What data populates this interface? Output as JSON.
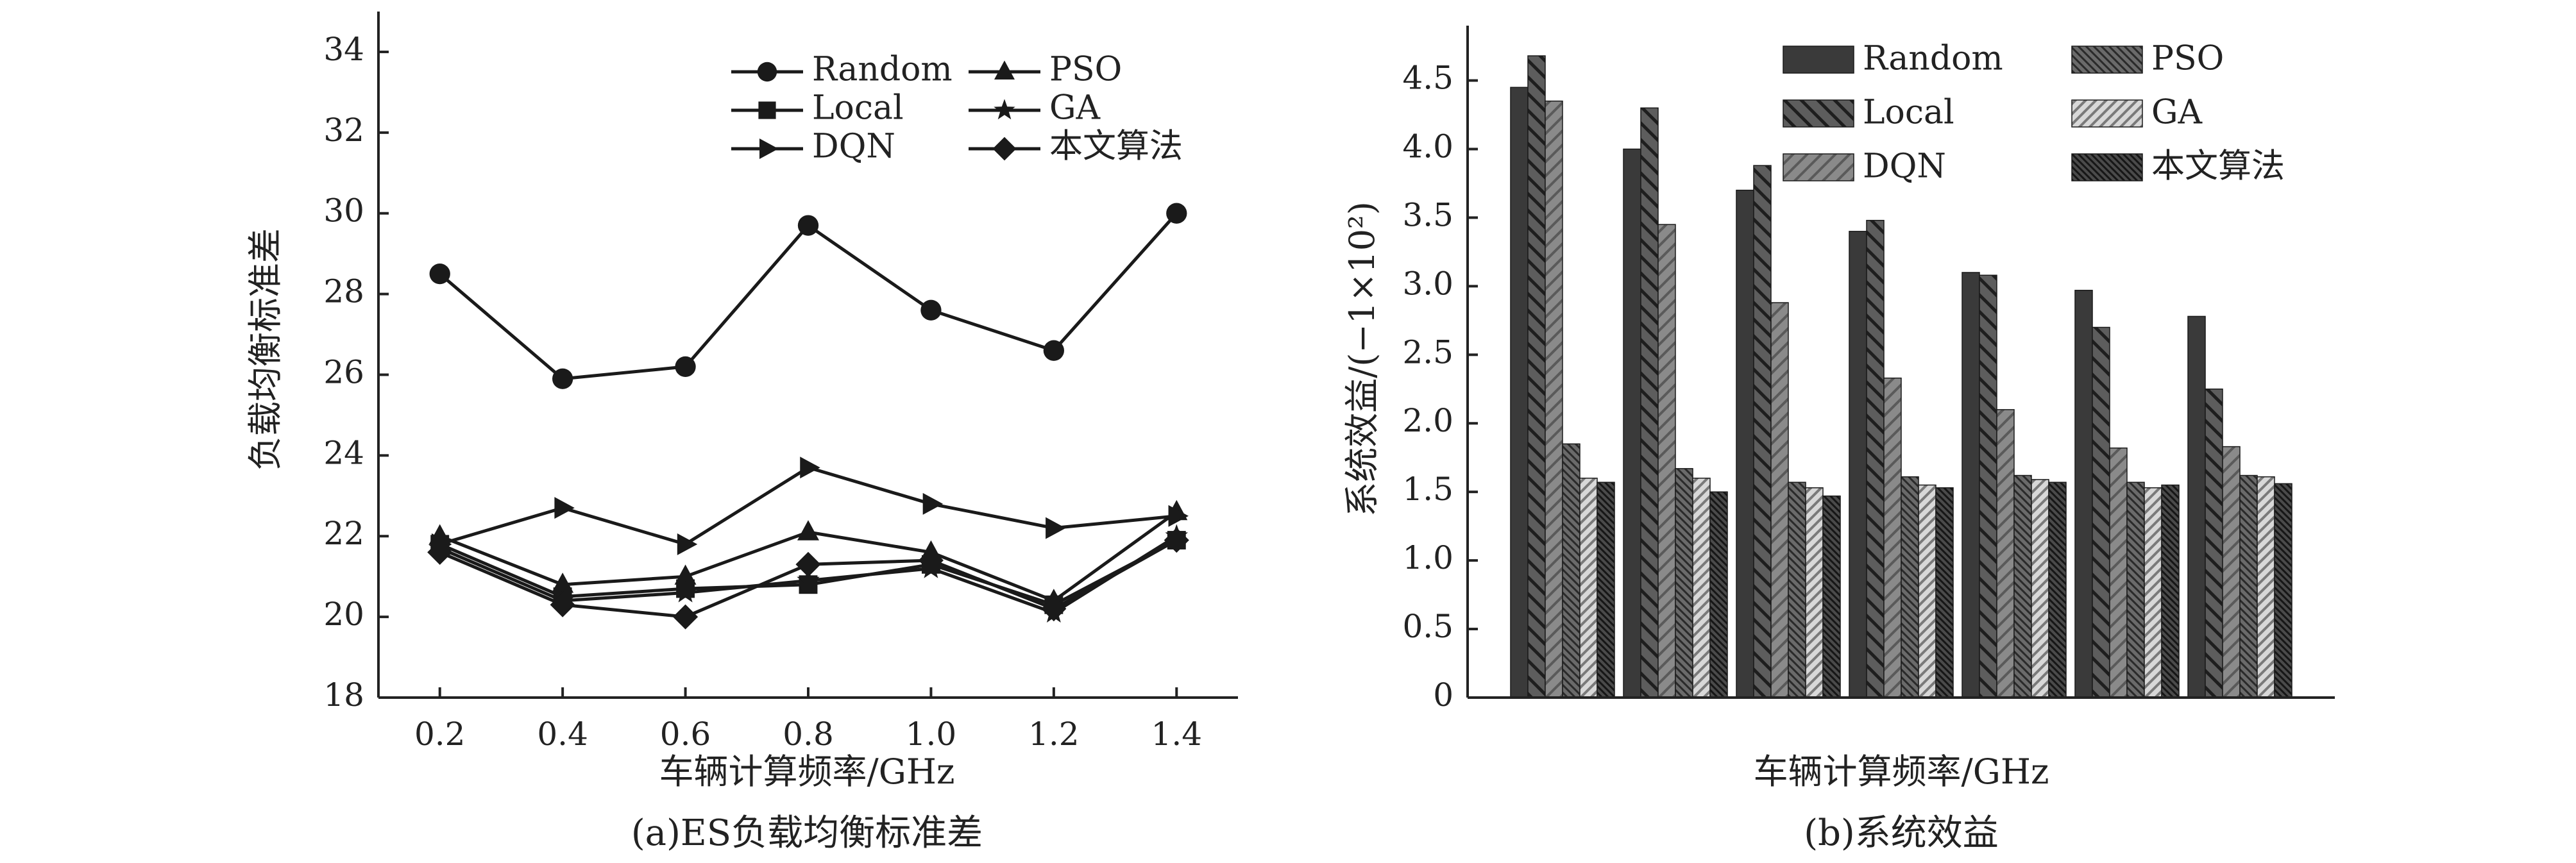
{
  "chart_data": [
    {
      "type": "line",
      "caption": "(a)ES负载均衡标准差",
      "xlabel": "车辆计算频率/GHz",
      "ylabel": "负载均衡标准差",
      "x": [
        0.2,
        0.4,
        0.6,
        0.8,
        1.0,
        1.2,
        1.4
      ],
      "x_ticks": [
        "0.2",
        "0.4",
        "0.6",
        "0.8",
        "1.0",
        "1.2",
        "1.4"
      ],
      "ylim": [
        18,
        35
      ],
      "y_ticks": [
        "18",
        "20",
        "22",
        "24",
        "26",
        "28",
        "30",
        "32",
        "34"
      ],
      "grid": false,
      "legend_position": "top-right",
      "series": [
        {
          "name": "Random",
          "marker": "circle",
          "values": [
            28.5,
            25.9,
            26.2,
            29.7,
            27.6,
            26.6,
            30.0
          ]
        },
        {
          "name": "PSO",
          "marker": "triangle",
          "values": [
            22.0,
            20.8,
            21.0,
            22.1,
            21.6,
            20.4,
            22.6
          ]
        },
        {
          "name": "Local",
          "marker": "square",
          "values": [
            21.8,
            20.5,
            20.7,
            20.8,
            21.3,
            20.3,
            21.9
          ]
        },
        {
          "name": "GA",
          "marker": "star",
          "values": [
            21.7,
            20.4,
            20.6,
            20.9,
            21.2,
            20.1,
            22.0
          ]
        },
        {
          "name": "DQN",
          "marker": "triangle-right",
          "values": [
            21.8,
            22.7,
            21.8,
            23.7,
            22.8,
            22.2,
            22.5
          ]
        },
        {
          "name": "本文算法",
          "marker": "diamond",
          "values": [
            21.6,
            20.3,
            20.0,
            21.3,
            21.4,
            20.2,
            21.9
          ]
        }
      ]
    },
    {
      "type": "bar",
      "caption": "(b)系统效益",
      "xlabel": "车辆计算频率/GHz",
      "ylabel": "系统效益/(−1×10²)",
      "categories": [
        "0.2",
        "0.4",
        "0.6",
        "0.8",
        "1.0",
        "1.2",
        "1.4"
      ],
      "ylim": [
        0,
        4.9
      ],
      "y_ticks": [
        "0",
        "0.5",
        "1.0",
        "1.5",
        "2.0",
        "2.5",
        "3.0",
        "3.5",
        "4.0",
        "4.5"
      ],
      "grid": false,
      "legend_position": "top",
      "series": [
        {
          "name": "Random",
          "pattern": "dark-solid",
          "values": [
            4.45,
            4.0,
            3.7,
            3.4,
            3.1,
            2.97,
            2.78
          ]
        },
        {
          "name": "Local",
          "pattern": "backslash-hatch",
          "values": [
            4.68,
            4.3,
            3.88,
            3.48,
            3.08,
            2.7,
            2.25
          ]
        },
        {
          "name": "DQN",
          "pattern": "mid-gray-hatch",
          "values": [
            4.35,
            3.45,
            2.88,
            2.33,
            2.1,
            1.82,
            1.83
          ]
        },
        {
          "name": "PSO",
          "pattern": "dense-hatch",
          "values": [
            1.85,
            1.67,
            1.57,
            1.61,
            1.62,
            1.57,
            1.62
          ]
        },
        {
          "name": "GA",
          "pattern": "light-hatch",
          "values": [
            1.6,
            1.6,
            1.53,
            1.55,
            1.59,
            1.53,
            1.61
          ]
        },
        {
          "name": "本文算法",
          "pattern": "dark-hatch",
          "values": [
            1.57,
            1.5,
            1.47,
            1.53,
            1.57,
            1.55,
            1.56
          ]
        }
      ]
    }
  ]
}
